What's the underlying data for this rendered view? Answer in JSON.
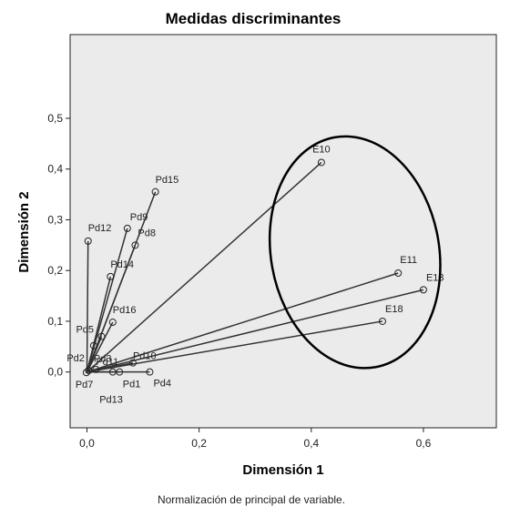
{
  "chart_data": {
    "type": "scatter",
    "subtype": "discrimination-measures-vectors",
    "title": "Medidas discriminantes",
    "xlabel": "Dimensión 1",
    "ylabel": "Dimensión 2",
    "caption": "Normalización de principal de variable.",
    "xlim": [
      -0.03,
      0.73
    ],
    "ylim": [
      -0.11,
      0.665
    ],
    "xticks": [
      {
        "value": 0.0,
        "label": "0,0"
      },
      {
        "value": 0.2,
        "label": "0,2"
      },
      {
        "value": 0.4,
        "label": "0,4"
      },
      {
        "value": 0.6,
        "label": "0,6"
      }
    ],
    "yticks": [
      {
        "value": 0.0,
        "label": "0,0"
      },
      {
        "value": 0.1,
        "label": "0,1"
      },
      {
        "value": 0.2,
        "label": "0,2"
      },
      {
        "value": 0.3,
        "label": "0,3"
      },
      {
        "value": 0.4,
        "label": "0,4"
      },
      {
        "value": 0.5,
        "label": "0,5"
      }
    ],
    "grid": false,
    "background": "#ebebeb",
    "line_color": "#333333",
    "points": [
      {
        "label": "E10",
        "x": 0.418,
        "y": 0.413
      },
      {
        "label": "E11",
        "x": 0.555,
        "y": 0.195
      },
      {
        "label": "E13",
        "x": 0.6,
        "y": 0.162
      },
      {
        "label": "E18",
        "x": 0.527,
        "y": 0.1
      },
      {
        "label": "Pd15",
        "x": 0.122,
        "y": 0.355
      },
      {
        "label": "Pd9",
        "x": 0.072,
        "y": 0.283
      },
      {
        "label": "Pd8",
        "x": 0.086,
        "y": 0.25
      },
      {
        "label": "Pd12",
        "x": 0.002,
        "y": 0.258
      },
      {
        "label": "Pd14",
        "x": 0.042,
        "y": 0.188
      },
      {
        "label": "Pd16",
        "x": 0.046,
        "y": 0.098
      },
      {
        "label": "Pd5",
        "x": 0.026,
        "y": 0.07
      },
      {
        "label": "Pd3",
        "x": 0.012,
        "y": 0.052
      },
      {
        "label": "Pd10",
        "x": 0.082,
        "y": 0.018
      },
      {
        "label": "Pd2",
        "x": 0.003,
        "y": 0.003
      },
      {
        "label": "Pd11",
        "x": 0.016,
        "y": 0.005
      },
      {
        "label": "Pd7",
        "x": -0.001,
        "y": -0.001
      },
      {
        "label": "Pd1",
        "x": 0.046,
        "y": 0.0
      },
      {
        "label": "Pd13",
        "x": 0.058,
        "y": 0.0
      },
      {
        "label": "Pd4",
        "x": 0.112,
        "y": 0.0
      }
    ],
    "ellipse": {
      "cx": 0.478,
      "cy": 0.236,
      "rx": 0.15,
      "ry": 0.23,
      "angle_deg": 10
    }
  }
}
